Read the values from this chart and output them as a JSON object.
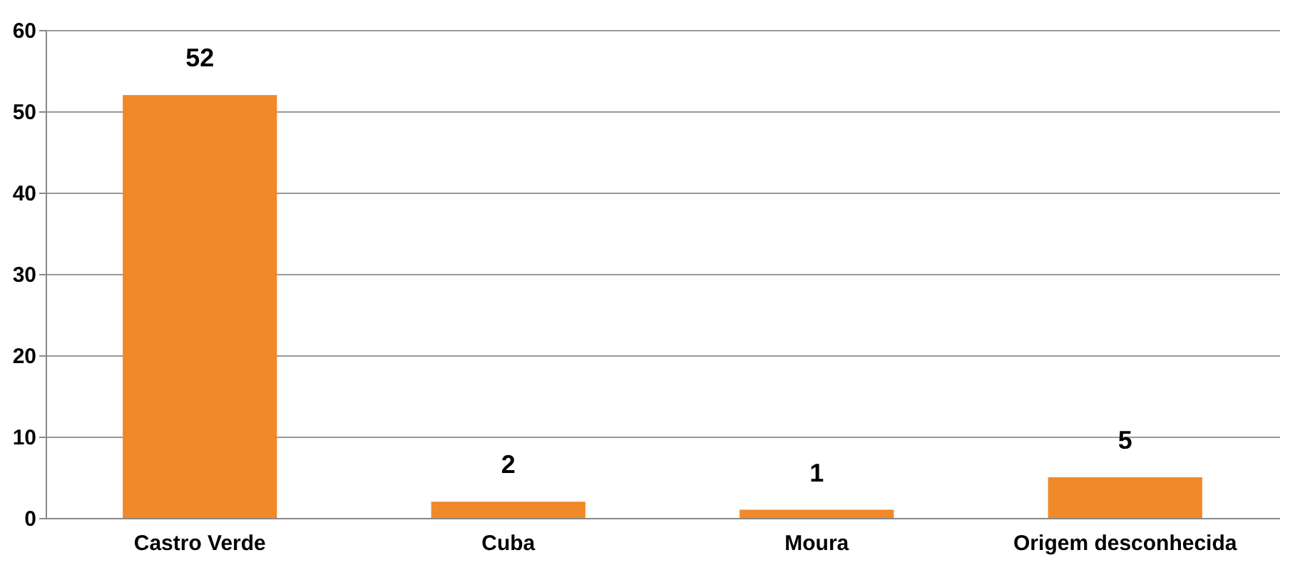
{
  "chart_data": {
    "type": "bar",
    "categories": [
      "Castro Verde",
      "Cuba",
      "Moura",
      "Origem desconhecida"
    ],
    "values": [
      52,
      2,
      1,
      5
    ],
    "color": "#f0892a",
    "ylim": [
      0,
      60
    ],
    "yticks": [
      0,
      10,
      20,
      30,
      40,
      50,
      60
    ],
    "grid": "y",
    "data_labels": true
  }
}
